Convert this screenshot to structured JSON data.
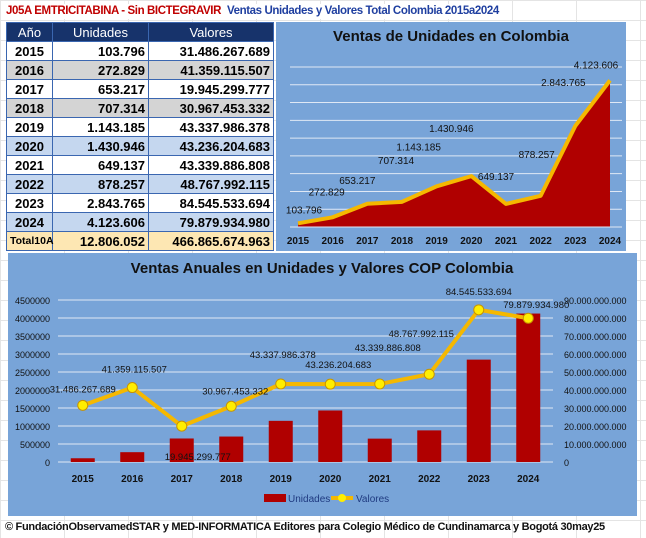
{
  "header": {
    "title_left": "J05A EMTRICITABINA - Sin BICTEGRAVIR",
    "title_right": "Ventas Unidades y Valores Total Colombia 2015a2024"
  },
  "table": {
    "columns": [
      "Año",
      "Unidades",
      "Valores"
    ],
    "rows": [
      [
        "2015",
        "103.796",
        "31.486.267.689"
      ],
      [
        "2016",
        "272.829",
        "41.359.115.507"
      ],
      [
        "2017",
        "653.217",
        "19.945.299.777"
      ],
      [
        "2018",
        "707.314",
        "30.967.453.332"
      ],
      [
        "2019",
        "1.143.185",
        "43.337.986.378"
      ],
      [
        "2020",
        "1.430.946",
        "43.236.204.683"
      ],
      [
        "2021",
        "649.137",
        "43.339.886.808"
      ],
      [
        "2022",
        "878.257",
        "48.767.992.115"
      ],
      [
        "2023",
        "2.843.765",
        "84.545.533.694"
      ],
      [
        "2024",
        "4.123.606",
        "79.879.934.980"
      ]
    ],
    "total": [
      "Total10A",
      "12.806.052",
      "466.865.674.963"
    ]
  },
  "colors": {
    "area": "#b00000",
    "line": "#f5b800",
    "bg": "#78a4d8",
    "marker": "#ffee00"
  },
  "chart_data": [
    {
      "type": "area",
      "title": "Ventas de Unidades en Colombia",
      "categories": [
        "2015",
        "2016",
        "2017",
        "2018",
        "2019",
        "2020",
        "2021",
        "2022",
        "2023",
        "2024"
      ],
      "values": [
        103796,
        272829,
        653217,
        707314,
        1143185,
        1430946,
        649137,
        878257,
        2843765,
        4123606
      ],
      "labels": [
        "103.796",
        "272.829",
        "653.217",
        "707.314",
        "1.143.185",
        "1.430.946",
        "649.137",
        "878.257",
        "2.843.765",
        "4.123.606"
      ],
      "ylim": [
        0,
        4500000
      ],
      "grid": true
    },
    {
      "type": "bar+line",
      "title": "Ventas Anuales en Unidades y Valores COP Colombia",
      "categories": [
        "2015",
        "2016",
        "2017",
        "2018",
        "2019",
        "2020",
        "2021",
        "2022",
        "2023",
        "2024"
      ],
      "series": [
        {
          "name": "Unidades",
          "type": "bar",
          "axis": "left",
          "values": [
            103796,
            272829,
            653217,
            707314,
            1143185,
            1430946,
            649137,
            878257,
            2843765,
            4123606
          ]
        },
        {
          "name": "Valores",
          "type": "line",
          "axis": "right",
          "values": [
            31486267689,
            41359115507,
            19945299777,
            30967453332,
            43337986378,
            43236204683,
            43339886808,
            48767992115,
            84545533694,
            79879934980
          ],
          "labels": [
            "31.486.267.689",
            "41.359.115.507",
            "19.945.299.777",
            "30.967.453.332",
            "43.337.986.378",
            "43.236.204.683",
            "43.339.886.808",
            "48.767.992.115",
            "84.545.533.694",
            "79.879.934.980"
          ]
        }
      ],
      "y_left": {
        "ylim": [
          0,
          4500000
        ],
        "ticks": [
          "0",
          "500000",
          "1000000",
          "1500000",
          "2000000",
          "2500000",
          "3000000",
          "3500000",
          "4000000",
          "4500000"
        ]
      },
      "y_right": {
        "ylim": [
          0,
          90000000000
        ],
        "ticks": [
          "0",
          "10.000.000.000",
          "20.000.000.000",
          "30.000.000.000",
          "40.000.000.000",
          "50.000.000.000",
          "60.000.000.000",
          "70.000.000.000",
          "80.000.000.000",
          "90.000.000.000"
        ]
      },
      "legend": "bottom",
      "grid": true
    }
  ],
  "footer": "© FundaciónObservamedSTAR y MED-INFORMATICA Editores para Colegio Médico de Cundinamarca y Bogotá 30may25"
}
